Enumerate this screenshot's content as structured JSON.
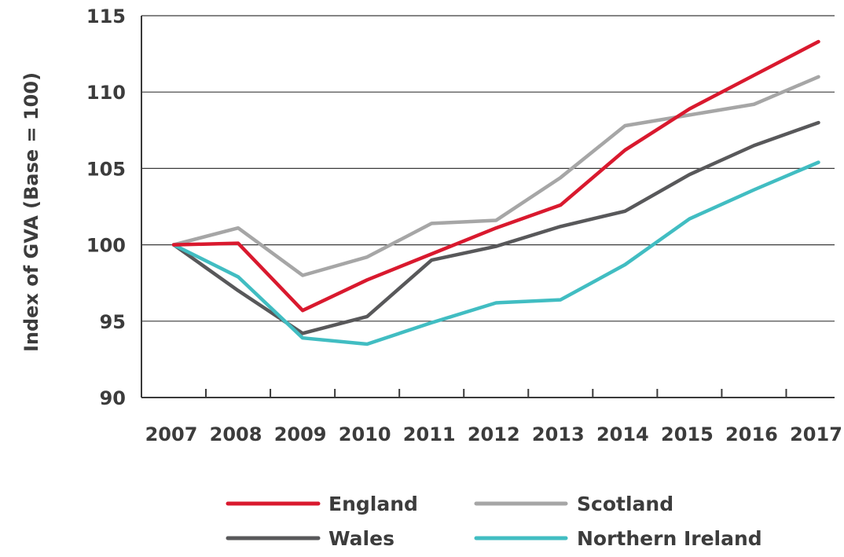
{
  "chart_data": {
    "type": "line",
    "title": "",
    "xlabel": "",
    "ylabel": "Index of GVA (Base = 100)",
    "x": [
      "2007",
      "2008",
      "2009",
      "2010",
      "2011",
      "2012",
      "2013",
      "2014",
      "2015",
      "2016",
      "2017"
    ],
    "yticks": [
      "90",
      "95",
      "100",
      "105",
      "110",
      "115"
    ],
    "ylim": [
      90,
      115
    ],
    "grid": "horizontal",
    "legend_position": "bottom",
    "series": [
      {
        "name": "England",
        "color": "#d9192e",
        "values": [
          100.0,
          100.1,
          95.7,
          97.7,
          99.4,
          101.1,
          102.6,
          106.2,
          108.9,
          111.1,
          113.3
        ]
      },
      {
        "name": "Scotland",
        "color": "#a6a6a6",
        "values": [
          100.0,
          101.1,
          98.0,
          99.2,
          101.4,
          101.6,
          104.4,
          107.8,
          108.5,
          109.2,
          111.0
        ]
      },
      {
        "name": "Wales",
        "color": "#58585a",
        "values": [
          100.0,
          97.0,
          94.2,
          95.3,
          99.0,
          99.9,
          101.2,
          102.2,
          104.6,
          106.5,
          108.0
        ]
      },
      {
        "name": "Northern Ireland",
        "color": "#41bdc2",
        "values": [
          100.0,
          97.9,
          93.9,
          93.5,
          94.9,
          96.2,
          96.4,
          98.7,
          101.7,
          103.6,
          105.4
        ]
      }
    ]
  }
}
